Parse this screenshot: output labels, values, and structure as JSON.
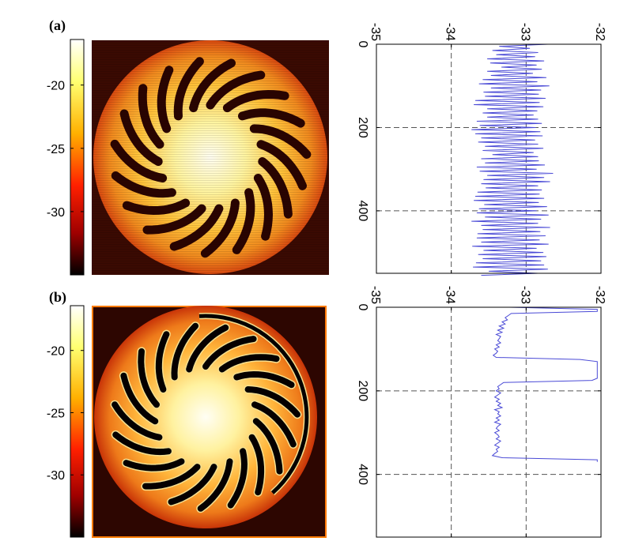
{
  "panels": [
    {
      "label": "(a)"
    },
    {
      "label": "(b)"
    }
  ],
  "colorbar": {
    "tick_labels": [
      "-20",
      "-25",
      "-30"
    ],
    "tick_values": [
      -20,
      -25,
      -30
    ],
    "range": [
      -35,
      -16.4
    ],
    "colormap": "hot"
  },
  "image_a": {
    "background": "#3a0a02",
    "disk_colors": [
      "#fffdf0",
      "#fff4a0",
      "#ffc23a",
      "#f08a1e",
      "#d84a10"
    ],
    "blade_color": "#2a0401",
    "blade_count": 19,
    "border": false
  },
  "image_b": {
    "background": "#2d0601",
    "disk_colors": [
      "#fffef4",
      "#fff2a0",
      "#ffb43a",
      "#ee7a1a",
      "#c83408"
    ],
    "blade_color": "#050000",
    "blade_edge_color": "#f6e090",
    "blade_count": 19,
    "border": true,
    "border_color": "#ff7a00",
    "arc": true
  },
  "chart_data": [
    {
      "type": "line",
      "orientation": "rotated",
      "x_tick_labels": [
        "-35",
        "-34",
        "-33",
        "-32"
      ],
      "xlim": [
        -35,
        -32
      ],
      "y_tick_labels": [
        "0",
        "200",
        "400"
      ],
      "ylim": [
        0,
        550
      ],
      "grid": true,
      "series_color": "#4a4ad6",
      "series": [
        {
          "y_start": 0,
          "y_step": 5,
          "values": [
            -32.71,
            -33.36,
            -32.95,
            -33.45,
            -32.84,
            -33.4,
            -32.88,
            -33.52,
            -32.76,
            -33.48,
            -32.86,
            -33.33,
            -32.79,
            -33.52,
            -32.91,
            -33.47,
            -32.73,
            -33.58,
            -32.85,
            -33.63,
            -32.69,
            -33.47,
            -32.8,
            -33.57,
            -32.83,
            -33.55,
            -32.74,
            -33.68,
            -32.82,
            -33.7,
            -32.77,
            -33.52,
            -32.85,
            -33.58,
            -32.9,
            -33.52,
            -32.84,
            -33.66,
            -32.79,
            -33.62,
            -32.87,
            -33.73,
            -32.81,
            -33.68,
            -32.78,
            -33.6,
            -32.88,
            -33.64,
            -32.84,
            -33.55,
            -32.77,
            -33.58,
            -32.9,
            -33.45,
            -32.84,
            -33.6,
            -32.83,
            -33.55,
            -32.75,
            -33.66,
            -32.86,
            -33.62,
            -32.64,
            -33.52,
            -32.76,
            -33.57,
            -32.68,
            -33.6,
            -32.84,
            -33.54,
            -32.79,
            -33.65,
            -32.82,
            -33.68,
            -32.76,
            -33.7,
            -32.83,
            -33.56,
            -32.72,
            -33.63,
            -32.86,
            -33.66,
            -32.7,
            -33.55,
            -32.8,
            -33.73,
            -32.84,
            -33.6,
            -32.68,
            -33.58,
            -32.81,
            -33.65,
            -32.74,
            -33.66,
            -32.82,
            -33.6,
            -32.7,
            -33.72,
            -32.86,
            -33.57,
            -32.77,
            -33.64,
            -32.73,
            -33.58,
            -32.8,
            -33.67,
            -32.76,
            -33.71,
            -32.71,
            -33.5,
            -32.84,
            -33.6
          ]
        },
        {
          "y_start": 0,
          "y_step": 5,
          "values": [
            -33.22,
            -32.05,
            -32.05,
            -33.2,
            -33.24,
            -33.28,
            -33.25,
            -33.32,
            -33.28,
            -33.36,
            -33.3,
            -33.38,
            -33.32,
            -33.4,
            -33.34,
            -33.36,
            -33.38,
            -33.34,
            -33.4,
            -33.36,
            -33.42,
            -33.38,
            -33.4,
            -33.44,
            -33.4,
            -32.28,
            -32.05,
            -32.05,
            -32.05,
            -32.05,
            -32.05,
            -32.05,
            -32.05,
            -32.05,
            -32.05,
            -32.12,
            -33.3,
            -33.34,
            -33.38,
            -33.36,
            -33.4,
            -33.34,
            -33.38,
            -33.42,
            -33.36,
            -33.4,
            -33.34,
            -33.38,
            -33.32,
            -33.42,
            -33.36,
            -33.38,
            -33.34,
            -33.4,
            -33.36,
            -33.42,
            -33.34,
            -33.38,
            -33.4,
            -33.36,
            -33.42,
            -33.38,
            -33.36,
            -33.4,
            -33.34,
            -33.38,
            -33.42,
            -33.36,
            -33.4,
            -33.38,
            -33.42,
            -33.45,
            -33.32,
            -32.05,
            -32.05
          ]
        }
      ]
    }
  ]
}
